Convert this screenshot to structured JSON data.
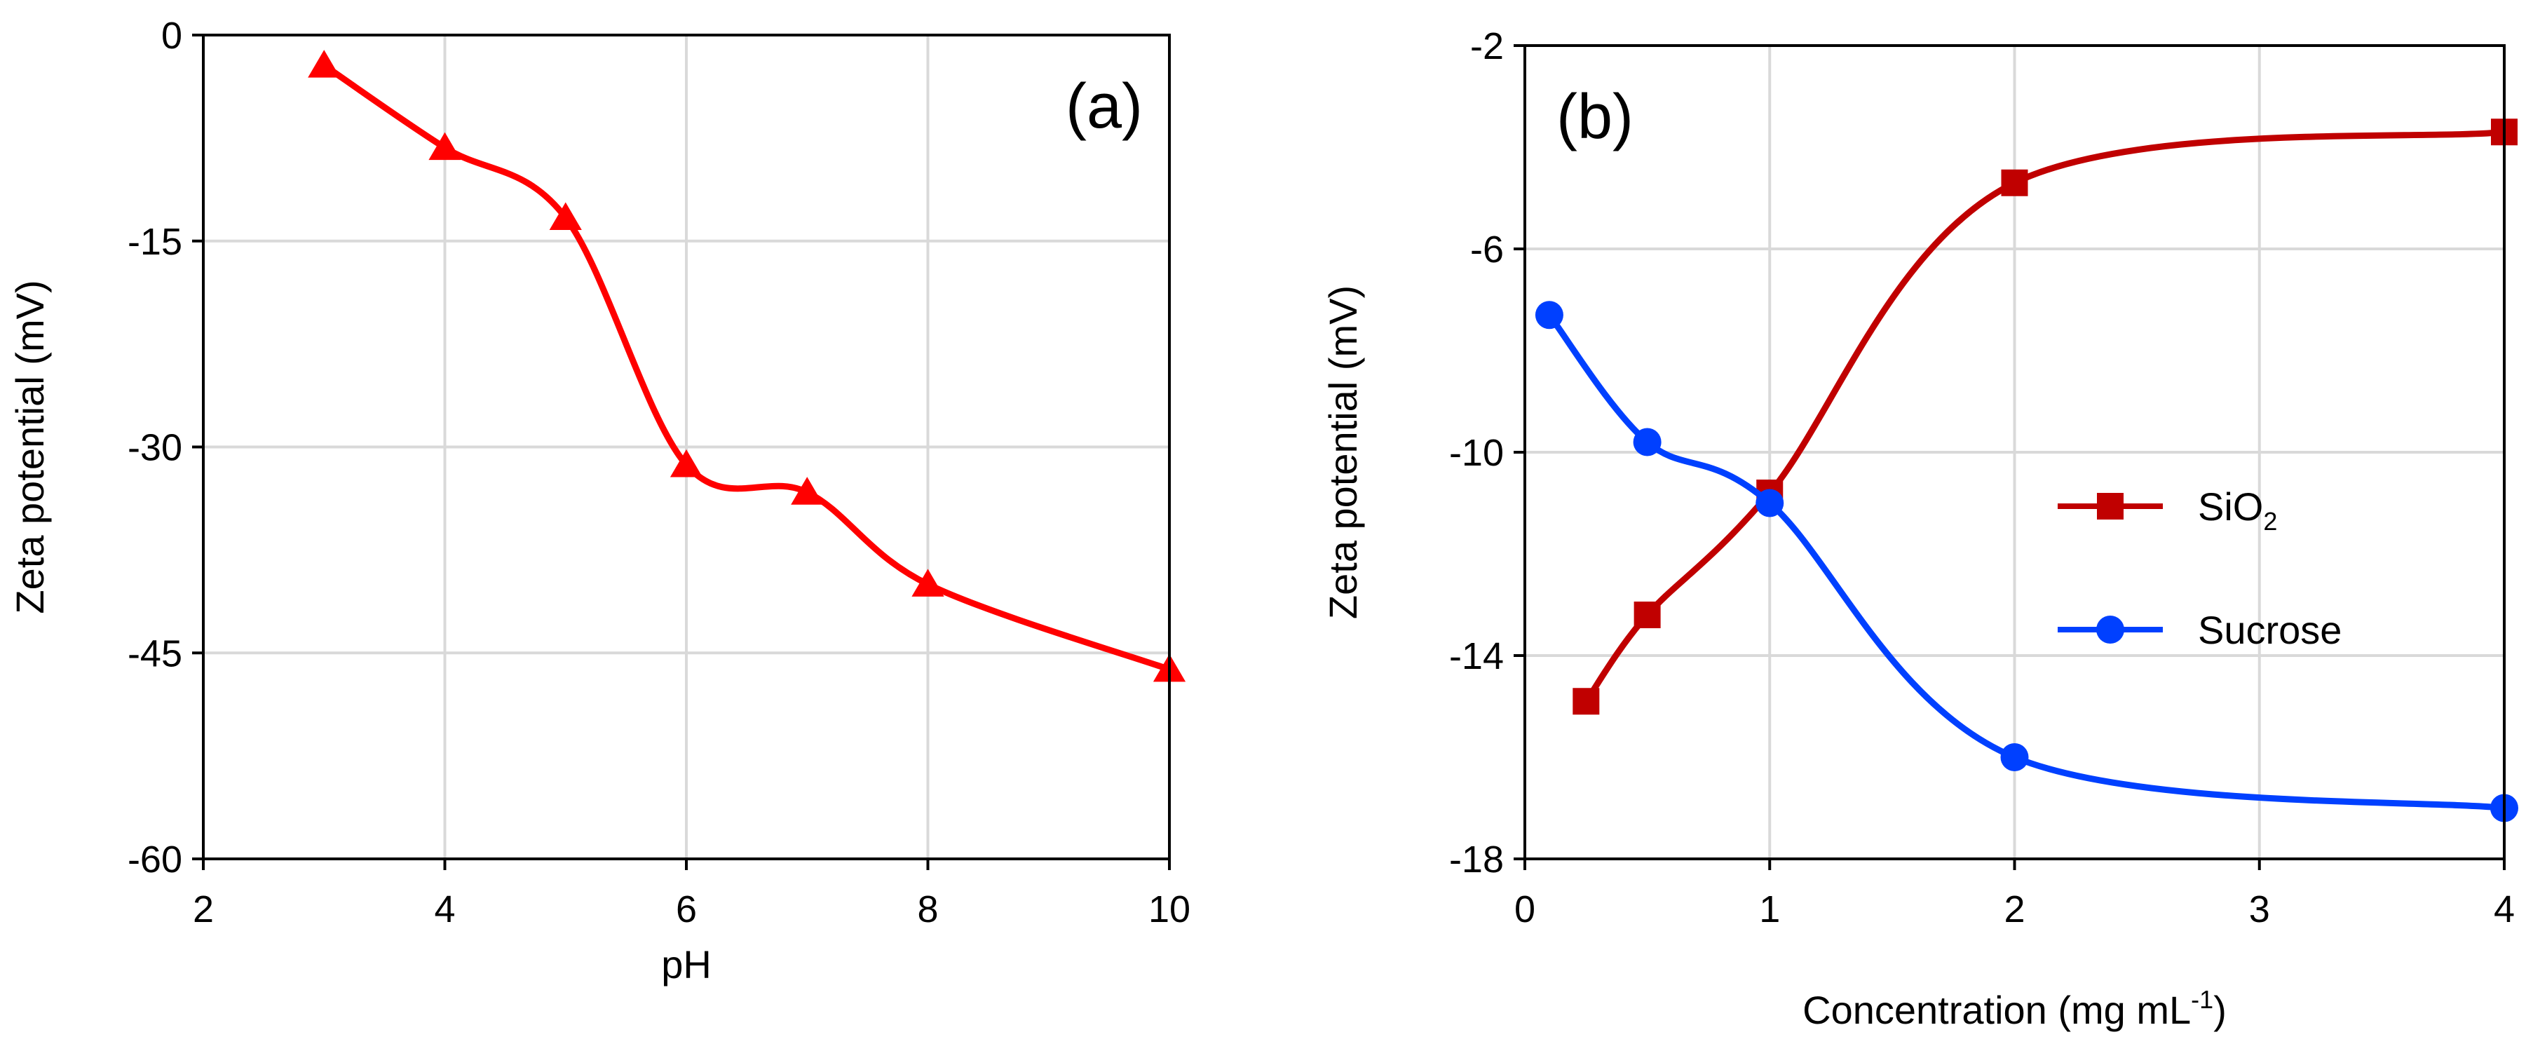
{
  "colors": {
    "panel_a_series": "#ff0000",
    "sio2": "#c00000",
    "sucrose": "#0040ff",
    "grid": "#d9d9d9",
    "axis": "#000000"
  },
  "chart_data": [
    {
      "type": "line",
      "panel_label": "(a)",
      "xlabel": "pH",
      "ylabel": "Zeta potential (mV)",
      "xlim": [
        2,
        10
      ],
      "ylim": [
        -60,
        0
      ],
      "xticks": [
        "2",
        "4",
        "6",
        "8",
        "10"
      ],
      "yticks": [
        "0",
        "-15",
        "-30",
        "-45",
        "-60"
      ],
      "xtick_values": [
        2,
        4,
        6,
        8,
        10
      ],
      "ytick_values": [
        0,
        -15,
        -30,
        -45,
        -60
      ],
      "grid": true,
      "smooth": true,
      "series": [
        {
          "marker": "triangle",
          "color": "#ff0000",
          "x": [
            3,
            4,
            5,
            6,
            7,
            8,
            10
          ],
          "y": [
            -2.2,
            -8.2,
            -13.3,
            -31.3,
            -33.3,
            -40.0,
            -46.2
          ]
        }
      ]
    },
    {
      "type": "line",
      "panel_label": "(b)",
      "xlabel": "Concentration (mg mL",
      "xlabel_sup": "-1",
      "xlabel_end": ")",
      "ylabel": "Zeta potential (mV)",
      "xlim": [
        0,
        4
      ],
      "ylim": [
        -18,
        -2
      ],
      "xticks": [
        "0",
        "1",
        "2",
        "3",
        "4"
      ],
      "yticks": [
        "-2",
        "-6",
        "-10",
        "-14",
        "-18"
      ],
      "xtick_values": [
        0,
        1,
        2,
        3,
        4
      ],
      "ytick_values": [
        -2,
        -6,
        -10,
        -14,
        -18
      ],
      "grid": true,
      "smooth": true,
      "legend_position": "right",
      "series": [
        {
          "name": "SiO",
          "name_sub": "2",
          "marker": "square",
          "color": "#c00000",
          "x": [
            0.25,
            0.5,
            1,
            2,
            4
          ],
          "y": [
            -14.9,
            -13.2,
            -10.8,
            -4.7,
            -3.7
          ]
        },
        {
          "name": "Sucrose",
          "marker": "circle",
          "color": "#0040ff",
          "x": [
            0.1,
            0.5,
            1,
            2,
            4
          ],
          "y": [
            -7.3,
            -9.8,
            -11.0,
            -16.0,
            -17.0
          ]
        }
      ]
    }
  ]
}
